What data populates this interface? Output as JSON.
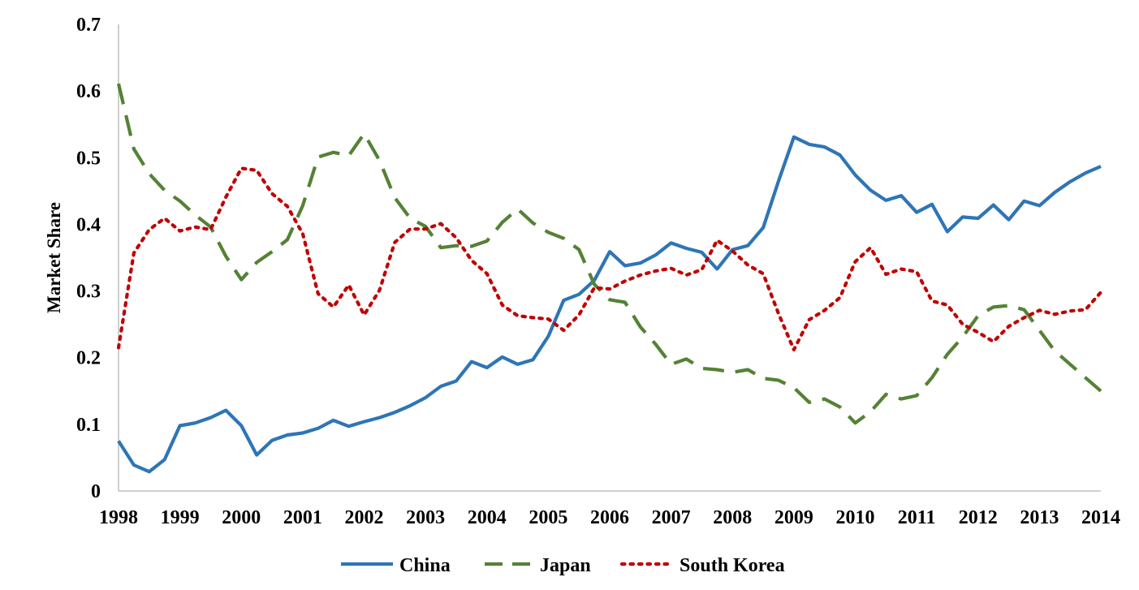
{
  "chart_data": {
    "type": "line",
    "title": "",
    "xlabel": "",
    "ylabel": "Market Share",
    "ylim": [
      0,
      0.7
    ],
    "yticks": [
      "0",
      "0.1",
      "0.2",
      "0.3",
      "0.4",
      "0.5",
      "0.6",
      "0.7"
    ],
    "xticks": [
      "1998",
      "1999",
      "2000",
      "2001",
      "2002",
      "2003",
      "2004",
      "2005",
      "2006",
      "2007",
      "2008",
      "2009",
      "2010",
      "2011",
      "2012",
      "2013",
      "2014"
    ],
    "xlim": [
      1998,
      2014
    ],
    "grid": false,
    "legend_position": "bottom",
    "x": [
      1998.0,
      1998.25,
      1998.5,
      1998.75,
      1999.0,
      1999.25,
      1999.5,
      1999.75,
      2000.0,
      2000.25,
      2000.5,
      2000.75,
      2001.0,
      2001.25,
      2001.5,
      2001.75,
      2002.0,
      2002.25,
      2002.5,
      2002.75,
      2003.0,
      2003.25,
      2003.5,
      2003.75,
      2004.0,
      2004.25,
      2004.5,
      2004.75,
      2005.0,
      2005.25,
      2005.5,
      2005.75,
      2006.0,
      2006.25,
      2006.5,
      2006.75,
      2007.0,
      2007.25,
      2007.5,
      2007.75,
      2008.0,
      2008.25,
      2008.5,
      2008.75,
      2009.0,
      2009.25,
      2009.5,
      2009.75,
      2010.0,
      2010.25,
      2010.5,
      2010.75,
      2011.0,
      2011.25,
      2011.5,
      2011.75,
      2012.0,
      2012.25,
      2012.5,
      2012.75,
      2013.0,
      2013.25,
      2013.5,
      2013.75,
      2014.0
    ],
    "series": [
      {
        "name": "China",
        "color": "#2e75b6",
        "dash": "solid",
        "values": [
          0.075,
          0.039,
          0.029,
          0.047,
          0.098,
          0.102,
          0.11,
          0.121,
          0.098,
          0.054,
          0.076,
          0.084,
          0.087,
          0.094,
          0.106,
          0.097,
          0.104,
          0.11,
          0.118,
          0.128,
          0.14,
          0.157,
          0.165,
          0.194,
          0.185,
          0.201,
          0.19,
          0.197,
          0.232,
          0.286,
          0.295,
          0.316,
          0.359,
          0.338,
          0.342,
          0.354,
          0.372,
          0.364,
          0.358,
          0.333,
          0.362,
          0.368,
          0.395,
          0.465,
          0.531,
          0.52,
          0.516,
          0.504,
          0.474,
          0.451,
          0.436,
          0.443,
          0.418,
          0.43,
          0.389,
          0.411,
          0.409,
          0.429,
          0.407,
          0.435,
          0.428,
          0.448,
          0.464,
          0.477,
          0.487
        ]
      },
      {
        "name": "Japan",
        "color": "#548235",
        "dash": "dashed",
        "values": [
          0.611,
          0.513,
          0.476,
          0.451,
          0.435,
          0.414,
          0.396,
          0.352,
          0.317,
          0.343,
          0.359,
          0.377,
          0.428,
          0.501,
          0.508,
          0.503,
          0.536,
          0.496,
          0.44,
          0.409,
          0.397,
          0.365,
          0.368,
          0.367,
          0.375,
          0.403,
          0.423,
          0.402,
          0.388,
          0.379,
          0.362,
          0.31,
          0.287,
          0.283,
          0.246,
          0.22,
          0.19,
          0.198,
          0.184,
          0.182,
          0.178,
          0.182,
          0.169,
          0.166,
          0.155,
          0.133,
          0.138,
          0.126,
          0.102,
          0.119,
          0.145,
          0.138,
          0.143,
          0.17,
          0.205,
          0.231,
          0.263,
          0.276,
          0.278,
          0.272,
          0.241,
          0.21,
          0.19,
          0.17,
          0.15
        ]
      },
      {
        "name": "South Korea",
        "color": "#c00000",
        "dash": "dotted",
        "values": [
          0.215,
          0.357,
          0.392,
          0.409,
          0.39,
          0.396,
          0.392,
          0.441,
          0.484,
          0.481,
          0.446,
          0.427,
          0.386,
          0.296,
          0.276,
          0.309,
          0.264,
          0.301,
          0.373,
          0.393,
          0.393,
          0.401,
          0.38,
          0.346,
          0.326,
          0.279,
          0.263,
          0.26,
          0.258,
          0.241,
          0.264,
          0.305,
          0.303,
          0.315,
          0.324,
          0.33,
          0.334,
          0.324,
          0.332,
          0.376,
          0.36,
          0.339,
          0.326,
          0.266,
          0.212,
          0.257,
          0.271,
          0.29,
          0.344,
          0.365,
          0.325,
          0.333,
          0.329,
          0.285,
          0.279,
          0.25,
          0.238,
          0.224,
          0.247,
          0.26,
          0.271,
          0.265,
          0.27,
          0.272,
          0.298
        ]
      }
    ]
  }
}
